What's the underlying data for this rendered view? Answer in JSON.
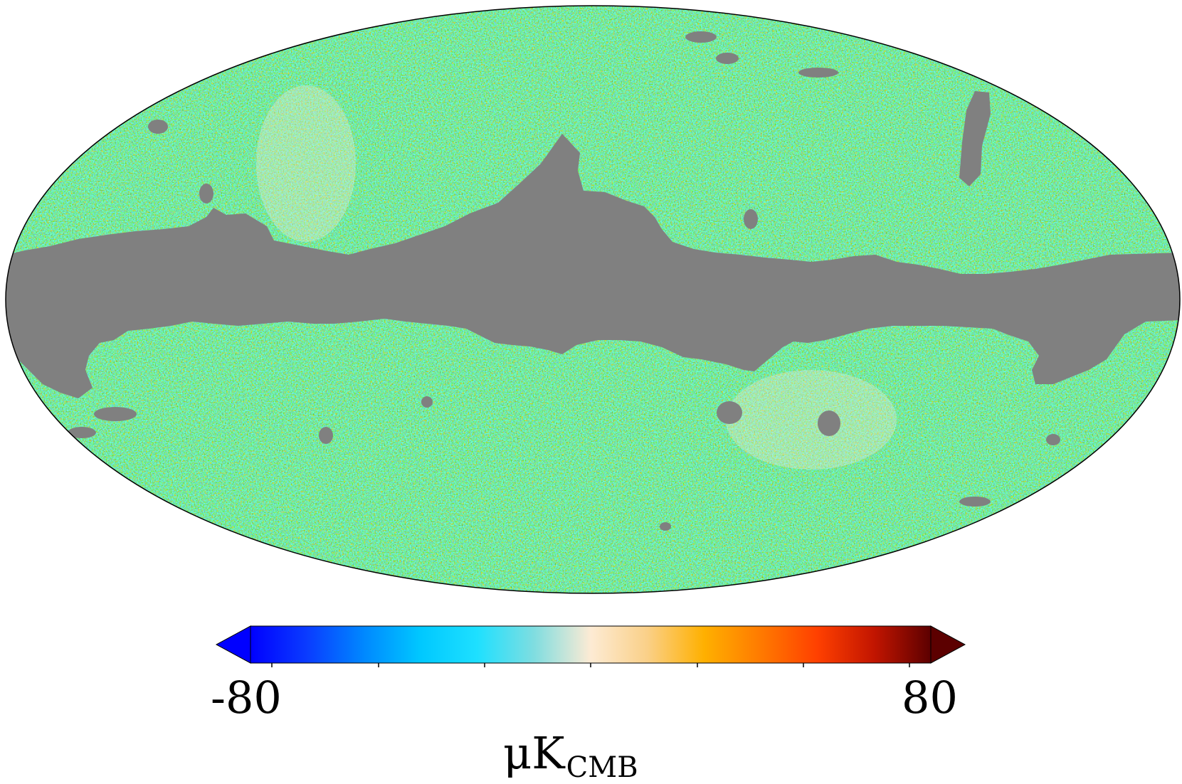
{
  "map": {
    "projection": "mollweide",
    "masked_color": "#808080",
    "outline_color": "#000000"
  },
  "colorbar": {
    "min_label": "-80",
    "max_label": "80",
    "unit_main": "μK",
    "unit_sub": "CMB",
    "extend": "both",
    "colors": [
      "#0000ff",
      "#0a3cff",
      "#0088ff",
      "#00c8ff",
      "#1ee0ff",
      "#7fdde0",
      "#fdebd4",
      "#fad088",
      "#ffb000",
      "#ff7a00",
      "#ff4000",
      "#c21500",
      "#5c0000"
    ]
  }
}
